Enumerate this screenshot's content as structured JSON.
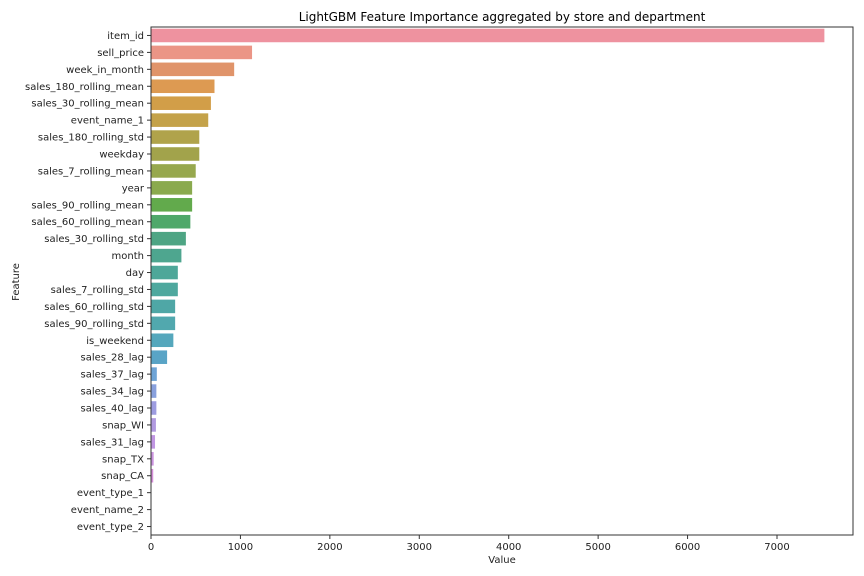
{
  "chart_data": {
    "type": "bar",
    "orientation": "horizontal",
    "title": "LightGBM Feature Importance aggregated by store and department",
    "xlabel": "Value",
    "ylabel": "Feature",
    "xlim": [
      0,
      7850
    ],
    "xticks": [
      0,
      1000,
      2000,
      3000,
      4000,
      5000,
      6000,
      7000
    ],
    "grid": false,
    "legend": "none",
    "categories": [
      "item_id",
      "sell_price",
      "week_in_month",
      "sales_180_rolling_mean",
      "sales_30_rolling_mean",
      "event_name_1",
      "sales_180_rolling_std",
      "weekday",
      "sales_7_rolling_mean",
      "year",
      "sales_90_rolling_mean",
      "sales_60_rolling_mean",
      "sales_30_rolling_std",
      "month",
      "day",
      "sales_7_rolling_std",
      "sales_60_rolling_std",
      "sales_90_rolling_std",
      "is_weekend",
      "sales_28_lag",
      "sales_37_lag",
      "sales_34_lag",
      "sales_40_lag",
      "snap_WI",
      "sales_31_lag",
      "snap_TX",
      "snap_CA",
      "event_type_1",
      "event_name_2",
      "event_type_2"
    ],
    "values": [
      7530,
      1130,
      930,
      710,
      670,
      640,
      540,
      540,
      500,
      460,
      460,
      440,
      390,
      340,
      300,
      300,
      270,
      270,
      250,
      180,
      65,
      60,
      60,
      55,
      45,
      30,
      25,
      5,
      5,
      3
    ],
    "colors": [
      "#ee929f",
      "#eb9586",
      "#e0946a",
      "#dd9a52",
      "#d29e48",
      "#c4a24a",
      "#b0a34b",
      "#a2a34b",
      "#97a84e",
      "#8aaa4e",
      "#62aa4c",
      "#4fa86a",
      "#4ea584",
      "#4ea68f",
      "#4ea799",
      "#4ea89e",
      "#4fa7a6",
      "#51a8ae",
      "#55a7bc",
      "#59a4c6",
      "#6ea4d6",
      "#88a0dd",
      "#9d9ce0",
      "#b19ae0",
      "#c096e2",
      "#cb94df",
      "#d690da",
      "#e190cc",
      "#e891c0",
      "#ed92b2"
    ]
  }
}
